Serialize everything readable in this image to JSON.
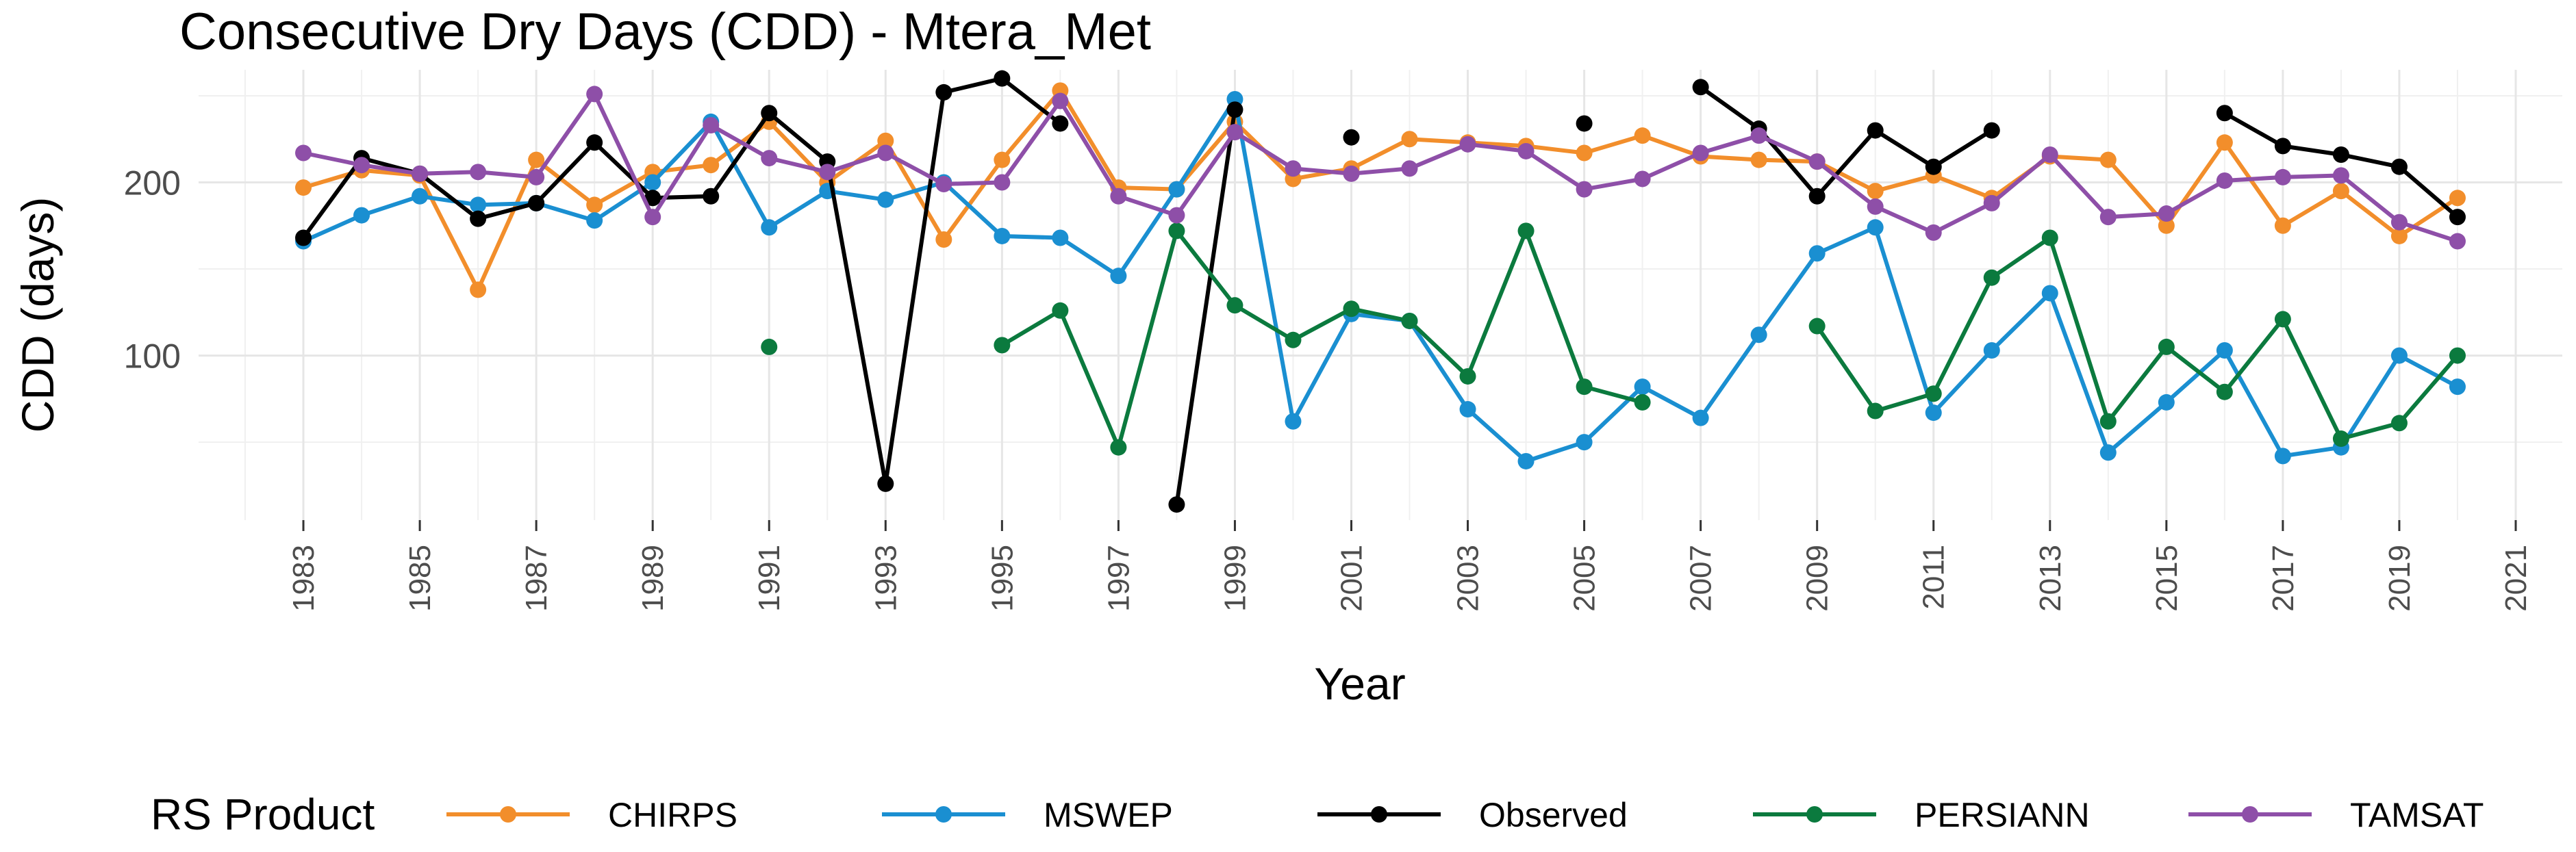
{
  "chart_data": {
    "type": "line",
    "title": "Consecutive Dry Days (CDD) - Mtera_Met",
    "xlabel": "Year",
    "ylabel": "CDD (days)",
    "xlim": [
      1981.2,
      2021.8
    ],
    "ylim": [
      5,
      265
    ],
    "x_ticks": [
      1983,
      1985,
      1987,
      1989,
      1991,
      1993,
      1995,
      1997,
      1999,
      2001,
      2003,
      2005,
      2007,
      2009,
      2011,
      2013,
      2015,
      2017,
      2019,
      2021
    ],
    "y_ticks": [
      100,
      200
    ],
    "grid": true,
    "legend_title": "RS Product",
    "legend_position": "bottom",
    "years": [
      1983,
      1984,
      1985,
      1986,
      1987,
      1988,
      1989,
      1990,
      1991,
      1992,
      1993,
      1994,
      1995,
      1996,
      1997,
      1998,
      1999,
      2000,
      2001,
      2002,
      2003,
      2004,
      2005,
      2006,
      2007,
      2008,
      2009,
      2010,
      2011,
      2012,
      2013,
      2014,
      2015,
      2016,
      2017,
      2018,
      2019,
      2020
    ],
    "series": [
      {
        "name": "CHIRPS",
        "color": "#F28E2B",
        "values": [
          197,
          207,
          204,
          138,
          213,
          187,
          206,
          210,
          235,
          200,
          224,
          167,
          213,
          253,
          197,
          196,
          235,
          202,
          208,
          225,
          223,
          221,
          217,
          227,
          215,
          213,
          212,
          195,
          204,
          191,
          215,
          213,
          175,
          223,
          175,
          195,
          169,
          191
        ]
      },
      {
        "name": "MSWEP",
        "color": "#1A8FD1",
        "values": [
          166,
          181,
          192,
          187,
          188,
          178,
          200,
          235,
          174,
          195,
          190,
          200,
          169,
          168,
          146,
          196,
          248,
          62,
          124,
          120,
          69,
          39,
          50,
          82,
          64,
          112,
          159,
          174,
          67,
          103,
          136,
          44,
          73,
          103,
          42,
          47,
          100,
          82
        ]
      },
      {
        "name": "Observed",
        "color": "#000000",
        "values": [
          168,
          214,
          205,
          179,
          188,
          223,
          191,
          192,
          240,
          212,
          26,
          252,
          260,
          234,
          null,
          14,
          242,
          null,
          226,
          null,
          null,
          null,
          234,
          null,
          255,
          231,
          192,
          230,
          209,
          230,
          null,
          null,
          null,
          240,
          221,
          216,
          209,
          180
        ]
      },
      {
        "name": "PERSIANN",
        "color": "#0B7A3E",
        "values": [
          null,
          null,
          null,
          null,
          null,
          null,
          null,
          null,
          105,
          null,
          null,
          null,
          106,
          126,
          47,
          172,
          129,
          109,
          127,
          120,
          88,
          172,
          82,
          73,
          null,
          null,
          117,
          68,
          78,
          145,
          168,
          62,
          105,
          79,
          121,
          52,
          61,
          100
        ]
      },
      {
        "name": "TAMSAT",
        "color": "#8E4FA8",
        "values": [
          217,
          210,
          205,
          206,
          203,
          251,
          180,
          233,
          214,
          206,
          217,
          199,
          200,
          247,
          192,
          181,
          229,
          208,
          205,
          208,
          222,
          218,
          196,
          202,
          217,
          227,
          212,
          186,
          171,
          188,
          216,
          180,
          182,
          201,
          203,
          204,
          177,
          166
        ]
      }
    ]
  }
}
